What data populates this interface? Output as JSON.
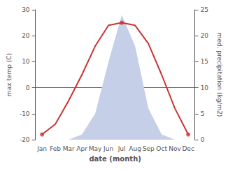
{
  "chart_data": {
    "type": "line",
    "xlabel": "date (month)",
    "ylabel": "max temp (C)",
    "y2label": "med. precipitation (kg/m2)",
    "categories": [
      "Jan",
      "Feb",
      "Mar",
      "Apr",
      "May",
      "Jun",
      "Jul",
      "Aug",
      "Sep",
      "Oct",
      "Nov",
      "Dec"
    ],
    "series": [
      {
        "type": "area",
        "color": "#c5cfe8",
        "axis": "y2",
        "values": [
          0,
          0,
          0,
          1,
          5,
          15,
          24,
          18,
          6,
          1,
          0,
          0
        ]
      },
      {
        "type": "line",
        "color": "#cc3333",
        "values": [
          -18,
          -14,
          -5,
          5,
          16,
          24,
          25,
          24,
          17,
          5,
          -8,
          -18
        ]
      },
      {
        "type": "scatter",
        "color": "#cc3333",
        "marker": "circle",
        "values": [
          -18,
          null,
          null,
          null,
          null,
          null,
          25,
          null,
          null,
          null,
          null,
          -18
        ]
      }
    ],
    "ylim": [
      -20,
      30
    ],
    "yticks": [
      -20,
      -10,
      0,
      10,
      20,
      30
    ],
    "y2lim": [
      0,
      25
    ],
    "y2ticks": [
      0,
      5,
      10,
      15,
      20,
      25
    ],
    "grid": false
  }
}
